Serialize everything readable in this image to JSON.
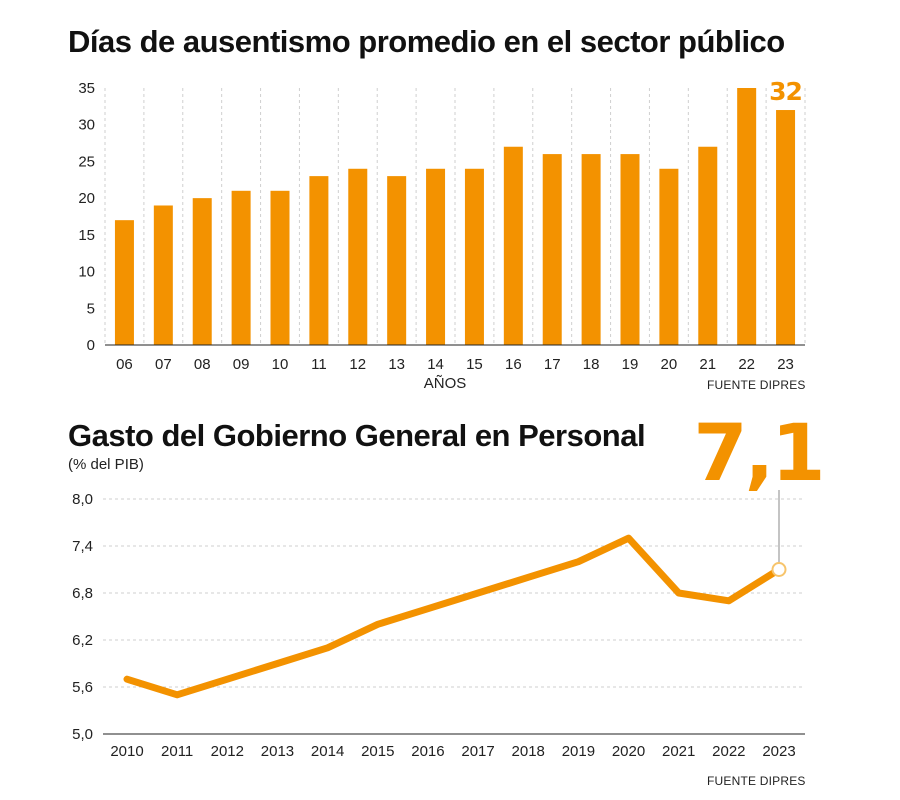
{
  "chart_data": [
    {
      "type": "bar",
      "title": "Días de ausentismo promedio en el sector público",
      "xlabel": "AÑOS",
      "ylabel": "",
      "source": "FUENTE DIPRES",
      "categories": [
        "06",
        "07",
        "08",
        "09",
        "10",
        "11",
        "12",
        "13",
        "14",
        "15",
        "16",
        "17",
        "18",
        "19",
        "20",
        "21",
        "22",
        "23"
      ],
      "values": [
        17,
        19,
        20,
        21,
        21,
        23,
        24,
        23,
        24,
        24,
        27,
        26,
        26,
        26,
        24,
        27,
        35,
        32
      ],
      "highlight_label": "32",
      "yticks": [
        "0",
        "5",
        "10",
        "15",
        "20",
        "25",
        "30",
        "35"
      ],
      "ylim": [
        0,
        35
      ],
      "grid": "vertical dashed",
      "color": "#f39200"
    },
    {
      "type": "line",
      "title": "Gasto del Gobierno General en Personal",
      "subtitle": "(% del PIB)",
      "source": "FUENTE DIPRES",
      "x": [
        "2010",
        "2011",
        "2012",
        "2013",
        "2014",
        "2015",
        "2016",
        "2017",
        "2018",
        "2019",
        "2020",
        "2021",
        "2022",
        "2023"
      ],
      "values": [
        5.7,
        5.5,
        5.7,
        5.9,
        6.1,
        6.4,
        6.6,
        6.8,
        7.0,
        7.2,
        7.5,
        6.8,
        6.7,
        7.1
      ],
      "highlight_label": "7,1",
      "yticks": [
        "5,0",
        "5,6",
        "6,2",
        "6,8",
        "7,4",
        "8,0"
      ],
      "ylim": [
        5.0,
        8.0
      ],
      "grid": "horizontal dashed",
      "color": "#f39200"
    }
  ]
}
